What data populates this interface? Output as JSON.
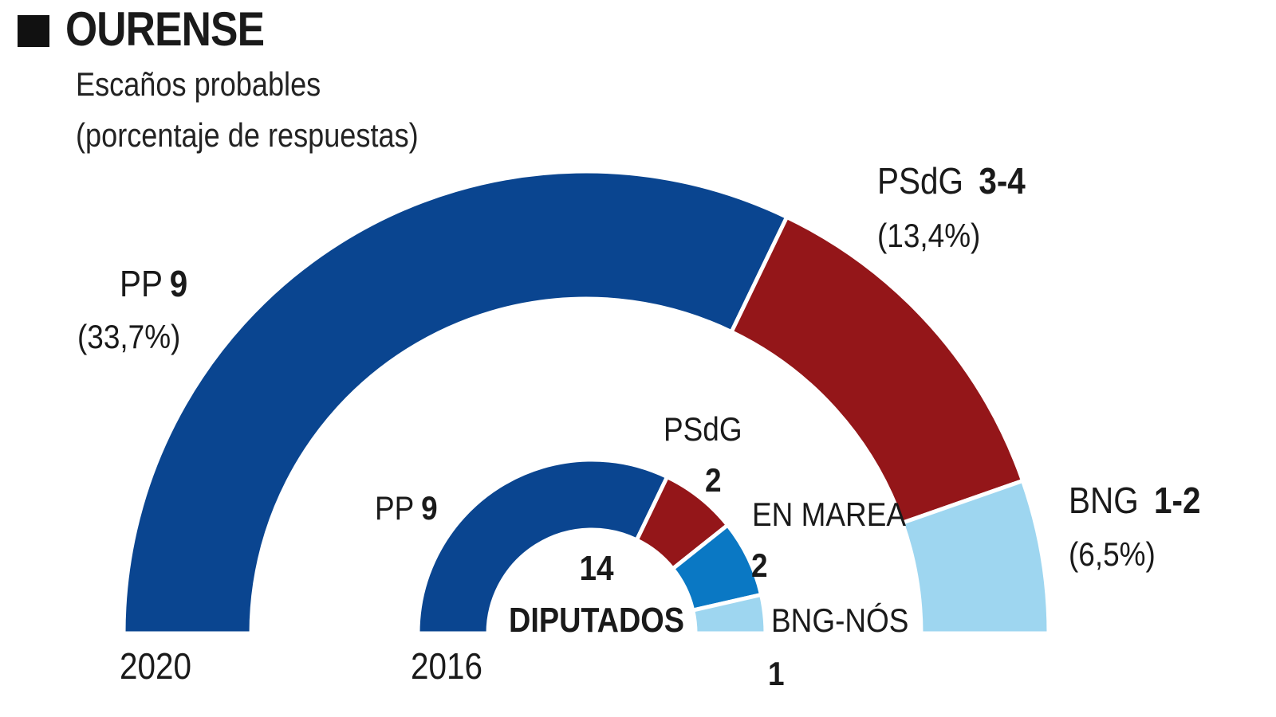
{
  "header": {
    "title": "OURENSE",
    "subtitle_line1": "Escaños probables",
    "subtitle_line2": "(porcentaje de respuestas)"
  },
  "chart_data": [
    {
      "type": "pie",
      "variant": "semicircle",
      "year_label": "2020",
      "title": "Escaños probables (porcentaje de respuestas)",
      "segments": [
        {
          "party": "PP",
          "seats": 9,
          "seats_label": "9",
          "percent_label": "(33,7%)",
          "color": "#0a4590"
        },
        {
          "party": "PSdG",
          "seats": 3.5,
          "seats_label": "3-4",
          "percent_label": "(13,4%)",
          "color": "#941619"
        },
        {
          "party": "BNG",
          "seats": 1.5,
          "seats_label": "1-2",
          "percent_label": "(6,5%)",
          "color": "#9ed6f0"
        }
      ]
    },
    {
      "type": "pie",
      "variant": "semicircle",
      "year_label": "2016",
      "center_total": "14",
      "center_label": "DIPUTADOS",
      "segments": [
        {
          "party": "PP",
          "seats": 9,
          "seats_label": "9",
          "color": "#0a4590"
        },
        {
          "party": "PSdG",
          "seats": 2,
          "seats_label": "2",
          "color": "#941619"
        },
        {
          "party": "EN MAREA",
          "seats": 2,
          "seats_label": "2",
          "color": "#0a78c4"
        },
        {
          "party": "BNG-NÓS",
          "seats": 1,
          "seats_label": "1",
          "color": "#9ed6f0"
        }
      ]
    }
  ]
}
